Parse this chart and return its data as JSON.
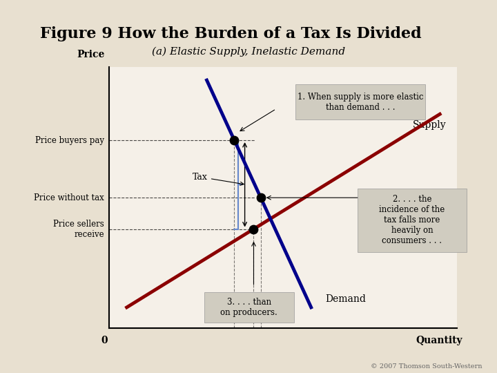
{
  "title": "Figure 9 How the Burden of a Tax Is Divided",
  "subtitle": "(a) Elastic Supply, Inelastic Demand",
  "bg_color": "#e8e0d0",
  "plot_bg_color": "#f5f0e8",
  "price_buyers_pay": 0.72,
  "price_without_tax": 0.5,
  "price_sellers_receive": 0.38,
  "equilibrium_q": 0.42,
  "xlabel": "Quantity",
  "ylabel": "Price",
  "annotation1": "1. When supply is more elastic\nthan demand . . .",
  "annotation2": "2. . . . the\nincidence of the\ntax falls more\nheavily on\nconsumers . . .",
  "annotation3": "3. . . . than\non producers.",
  "supply_label": "Supply",
  "demand_label": "Demand",
  "tax_label": "Tax",
  "y_labels": [
    "Price buyers pay",
    "Price without tax",
    "Price sellers\nreceive"
  ],
  "supply_color": "#8b0000",
  "demand_color": "#00008b",
  "zero_label": "0",
  "copyright": "© 2007 Thomson South-Western"
}
